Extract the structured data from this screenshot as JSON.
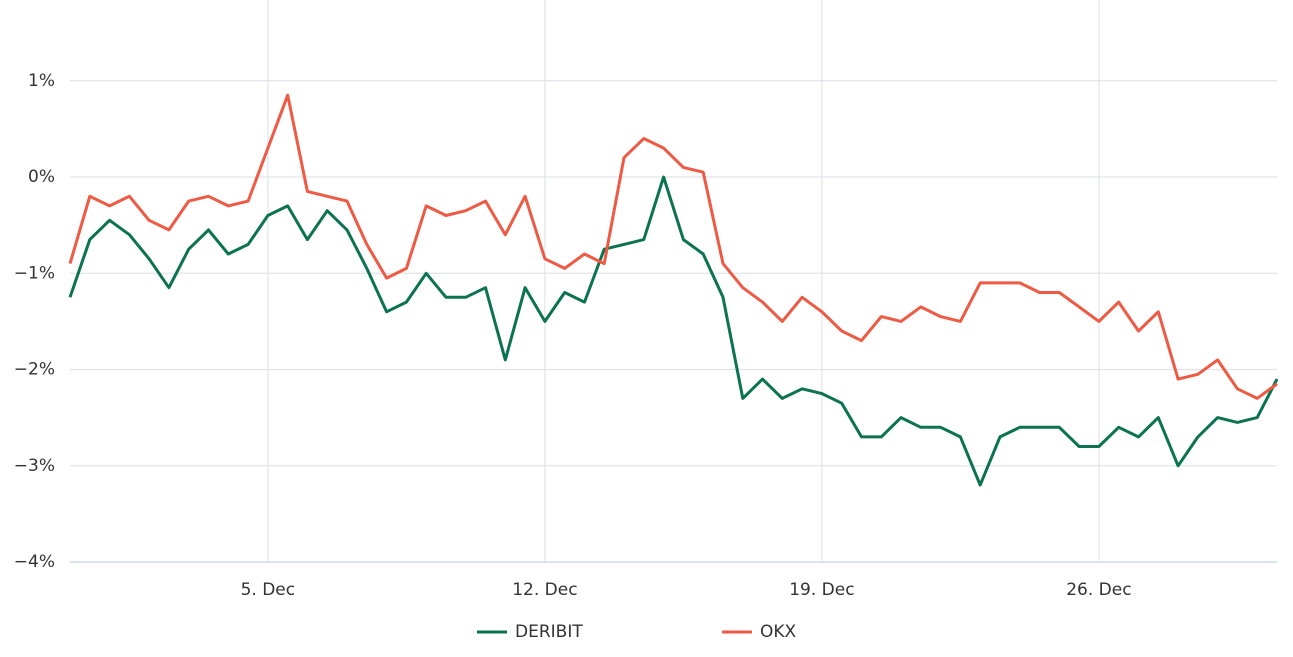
{
  "chart_data": {
    "type": "line",
    "x": [
      0,
      0.5,
      1,
      1.5,
      2,
      2.5,
      3,
      3.5,
      4,
      4.5,
      5,
      5.5,
      6,
      6.5,
      7,
      7.5,
      8,
      8.5,
      9,
      9.5,
      10,
      10.5,
      11,
      11.5,
      12,
      12.5,
      13,
      13.5,
      14,
      14.5,
      15,
      15.5,
      16,
      16.5,
      17,
      17.5,
      18,
      18.5,
      19,
      19.5,
      20,
      20.5,
      21,
      21.5,
      22,
      22.5,
      23,
      23.5,
      24,
      24.5,
      25,
      25.5,
      26,
      26.5,
      27,
      27.5,
      28,
      28.5,
      29,
      29.5,
      30,
      30.5
    ],
    "series": [
      {
        "name": "DERIBIT",
        "color": "#0b7350",
        "values": [
          -1.25,
          -0.65,
          -0.45,
          -0.6,
          -0.85,
          -1.15,
          -0.75,
          -0.55,
          -0.8,
          -0.7,
          -0.4,
          -0.3,
          -0.65,
          -0.35,
          -0.55,
          -0.95,
          -1.4,
          -1.3,
          -1.0,
          -1.25,
          -1.25,
          -1.15,
          -1.9,
          -1.15,
          -1.5,
          -1.2,
          -1.3,
          -0.75,
          -0.7,
          -0.65,
          0.0,
          -0.65,
          -0.8,
          -1.25,
          -2.3,
          -2.1,
          -2.3,
          -2.2,
          -2.25,
          -2.35,
          -2.7,
          -2.7,
          -2.5,
          -2.6,
          -2.6,
          -2.7,
          -3.2,
          -2.7,
          -2.6,
          -2.6,
          -2.6,
          -2.8,
          -2.8,
          -2.6,
          -2.7,
          -2.5,
          -3.0,
          -2.7,
          -2.5,
          -2.55,
          -2.5,
          -2.1
        ]
      },
      {
        "name": "OKX",
        "color": "#ee5a44",
        "values": [
          -0.9,
          -0.2,
          -0.3,
          -0.2,
          -0.45,
          -0.55,
          -0.25,
          -0.2,
          -0.3,
          -0.25,
          0.3,
          0.85,
          -0.15,
          -0.2,
          -0.25,
          -0.7,
          -1.05,
          -0.95,
          -0.3,
          -0.4,
          -0.35,
          -0.25,
          -0.6,
          -0.2,
          -0.85,
          -0.95,
          -0.8,
          -0.9,
          0.2,
          0.4,
          0.3,
          0.1,
          0.05,
          -0.9,
          -1.15,
          -1.3,
          -1.5,
          -1.25,
          -1.4,
          -1.6,
          -1.7,
          -1.45,
          -1.5,
          -1.35,
          -1.45,
          -1.5,
          -1.1,
          -1.1,
          -1.1,
          -1.2,
          -1.2,
          -1.35,
          -1.5,
          -1.3,
          -1.6,
          -1.4,
          -2.1,
          -2.05,
          -1.9,
          -2.2,
          -2.3,
          -2.15
        ]
      }
    ],
    "xlim": [
      0,
      30.5
    ],
    "xticks": [
      {
        "value": 5,
        "label": "5. Dec"
      },
      {
        "value": 12,
        "label": "12. Dec"
      },
      {
        "value": 19,
        "label": "19. Dec"
      },
      {
        "value": 26,
        "label": "26. Dec"
      }
    ],
    "ylim": [
      -4,
      1.6
    ],
    "yticks": [
      {
        "value": -4,
        "label": "−4%"
      },
      {
        "value": -3,
        "label": "−3%"
      },
      {
        "value": -2,
        "label": "−2%"
      },
      {
        "value": -1,
        "label": "−1%"
      },
      {
        "value": 0,
        "label": "0%"
      },
      {
        "value": 1,
        "label": "1%"
      }
    ],
    "grid": true
  }
}
